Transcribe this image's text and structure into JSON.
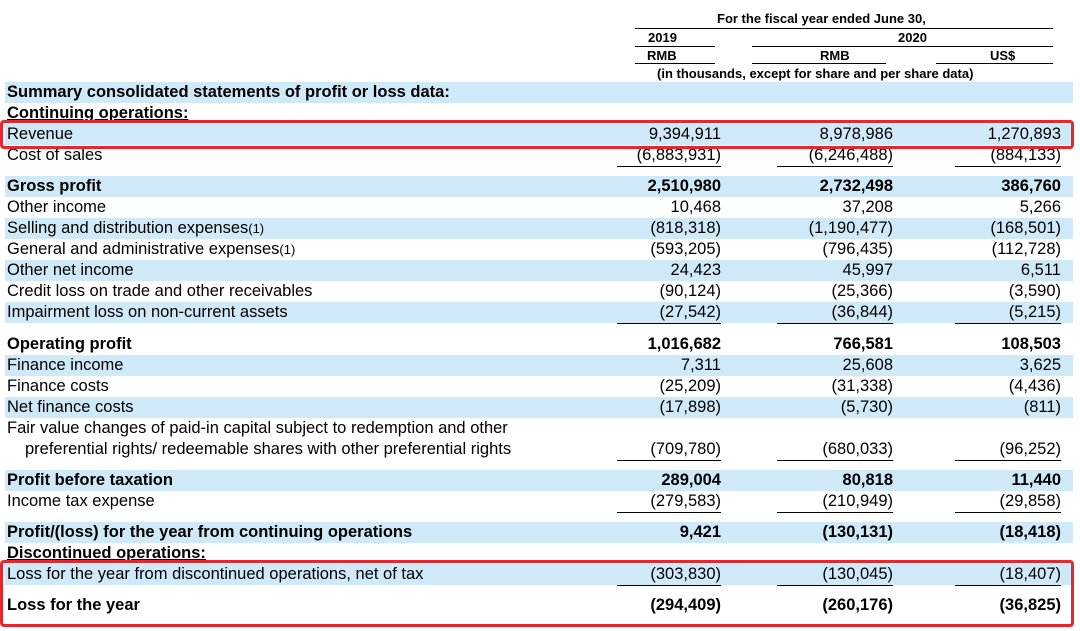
{
  "header": {
    "period_title": "For the fiscal year ended June 30,",
    "year1": "2019",
    "year2": "2020",
    "cur1": "RMB",
    "cur2": "RMB",
    "cur3": "US$",
    "units_note": "(in thousands, except for share and per share data)"
  },
  "sections": {
    "summary_title": "Summary consolidated statements of profit or loss data:",
    "continuing": "Continuing operations:",
    "discontinued": "Discontinued operations:"
  },
  "rows": [
    {
      "label": "Revenue",
      "v1": "9,394,911",
      "v2": "8,978,986",
      "v3": "1,270,893"
    },
    {
      "label": "Cost of sales",
      "v1": "(6,883,931)",
      "v2": "(6,246,488)",
      "v3": "(884,133)"
    },
    {
      "label": "Gross profit",
      "v1": "2,510,980",
      "v2": "2,732,498",
      "v3": "386,760"
    },
    {
      "label": "Other income",
      "v1": "10,468",
      "v2": "37,208",
      "v3": "5,266"
    },
    {
      "label": "Selling and distribution expenses",
      "note": "(1)",
      "v1": "(818,318)",
      "v2": "(1,190,477)",
      "v3": "(168,501)"
    },
    {
      "label": "General and administrative expenses",
      "note": "(1)",
      "v1": "(593,205)",
      "v2": "(796,435)",
      "v3": "(112,728)"
    },
    {
      "label": "Other net income",
      "v1": "24,423",
      "v2": "45,997",
      "v3": "6,511"
    },
    {
      "label": "Credit loss on trade and other receivables",
      "v1": "(90,124)",
      "v2": "(25,366)",
      "v3": "(3,590)"
    },
    {
      "label": "Impairment loss on non-current assets",
      "v1": "(27,542)",
      "v2": "(36,844)",
      "v3": "(5,215)"
    },
    {
      "label": "Operating profit",
      "v1": "1,016,682",
      "v2": "766,581",
      "v3": "108,503"
    },
    {
      "label": "Finance income",
      "v1": "7,311",
      "v2": "25,608",
      "v3": "3,625"
    },
    {
      "label": "Finance costs",
      "v1": "(25,209)",
      "v2": "(31,338)",
      "v3": "(4,436)"
    },
    {
      "label": "Net finance costs",
      "v1": "(17,898)",
      "v2": "(5,730)",
      "v3": "(811)"
    },
    {
      "label": "Fair value changes of paid-in capital subject to redemption and other",
      "label2": "preferential rights/ redeemable shares with other preferential rights",
      "v1": "(709,780)",
      "v2": "(680,033)",
      "v3": "(96,252)"
    },
    {
      "label": "Profit before taxation",
      "v1": "289,004",
      "v2": "80,818",
      "v3": "11,440"
    },
    {
      "label": "Income tax expense",
      "v1": "(279,583)",
      "v2": "(210,949)",
      "v3": "(29,858)"
    },
    {
      "label": "Profit/(loss) for the year from continuing operations",
      "v1": "9,421",
      "v2": "(130,131)",
      "v3": "(18,418)"
    },
    {
      "label": "Loss for the year from discontinued operations, net of tax",
      "v1": "(303,830)",
      "v2": "(130,045)",
      "v3": "(18,407)"
    },
    {
      "label": "Loss for the year",
      "v1": "(294,409)",
      "v2": "(260,176)",
      "v3": "(36,825)"
    }
  ],
  "highlight_color": "#e8262d",
  "row_shade_color": "#cfe9f8"
}
